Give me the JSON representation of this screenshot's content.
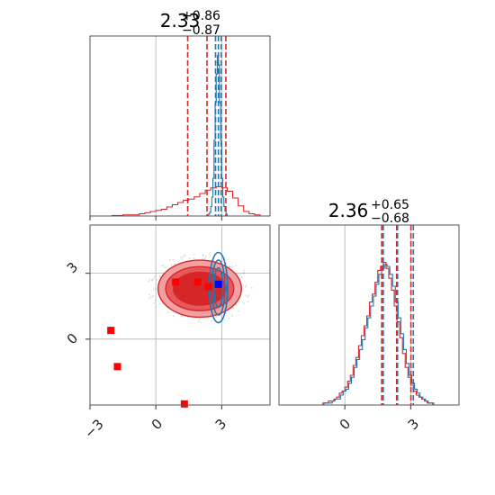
{
  "chart_data": {
    "type": "corner",
    "grid": true,
    "parameters": [
      {
        "title_value": "2.33",
        "title_plus": "+0.86",
        "title_minus": "−0.87"
      },
      {
        "title_value": "2.36",
        "title_plus": "+0.65",
        "title_minus": "−0.68"
      }
    ],
    "x_ticks_param0": [
      "−3",
      "0",
      "3"
    ],
    "y_ticks_param1": [
      "3",
      "0"
    ],
    "x_ticks_param1": [
      "0",
      "3"
    ],
    "range_param0": [
      -3.0,
      5.2
    ],
    "range_param1": [
      -3.0,
      5.2
    ],
    "colors": {
      "red": "#d62728",
      "blue": "#1f77b4",
      "grid": "#b0b0b0"
    },
    "vlines_param0": {
      "red": [
        1.45,
        2.33,
        3.19
      ],
      "blue": [
        2.72,
        2.85,
        2.98
      ]
    },
    "vlines_param1": {
      "red": [
        1.68,
        2.36,
        3.01
      ],
      "blue": [
        1.75,
        2.4,
        3.12
      ]
    },
    "hist_param0": {
      "red": {
        "bin_start": -2.0,
        "bin_width": 0.25,
        "counts": [
          0.5,
          0.5,
          1,
          1,
          1,
          2,
          3,
          4,
          5,
          6,
          8,
          10,
          12,
          14,
          15,
          17,
          20,
          23,
          25,
          26,
          25,
          22,
          16,
          9,
          4,
          2,
          1
        ]
      },
      "blue": {
        "bin_start": 2.4,
        "bin_width": 0.05,
        "counts": [
          2,
          4,
          10,
          20,
          40,
          80,
          120,
          150,
          170,
          160,
          120,
          80,
          40,
          20,
          10,
          5,
          2
        ]
      }
    },
    "hist_param1": {
      "red": {
        "bin_start": -1.0,
        "bin_width": 0.125,
        "counts": [
          1,
          1,
          2,
          2,
          3,
          4,
          6,
          7,
          9,
          12,
          15,
          20,
          24,
          30,
          35,
          40,
          45,
          52,
          56,
          62,
          68,
          70,
          72,
          69,
          64,
          58,
          50,
          42,
          34,
          26,
          19,
          14,
          10,
          7,
          5,
          4,
          3,
          2,
          1,
          1
        ]
      },
      "blue": {
        "bin_start": -0.95,
        "bin_width": 0.125,
        "counts": [
          1,
          1,
          1,
          2,
          3,
          3,
          5,
          7,
          8,
          11,
          14,
          19,
          23,
          28,
          33,
          39,
          44,
          50,
          55,
          61,
          66,
          69,
          71,
          70,
          66,
          60,
          52,
          44,
          36,
          28,
          21,
          15,
          11,
          8,
          6,
          4,
          3,
          2,
          1,
          1
        ]
      }
    },
    "contours_red": {
      "center": [
        2.0,
        2.3
      ],
      "radii_x": [
        1.2,
        1.55,
        1.9
      ],
      "radii_y": [
        0.75,
        1.0,
        1.3
      ],
      "fills": [
        "#d62728",
        "#e8585a",
        "#f2a0a1"
      ]
    },
    "contours_blue": {
      "center": [
        2.85,
        2.35
      ],
      "radii_x": [
        0.2,
        0.3,
        0.42
      ],
      "radii_y": [
        0.9,
        1.25,
        1.6
      ]
    },
    "markers_red": [
      [
        -2.05,
        0.4
      ],
      [
        -1.75,
        -1.25
      ],
      [
        0.9,
        2.6
      ],
      [
        1.9,
        2.6
      ],
      [
        2.4,
        2.4
      ],
      [
        1.3,
        -2.95
      ]
    ],
    "markers_blue": [
      [
        2.85,
        2.5
      ]
    ]
  }
}
